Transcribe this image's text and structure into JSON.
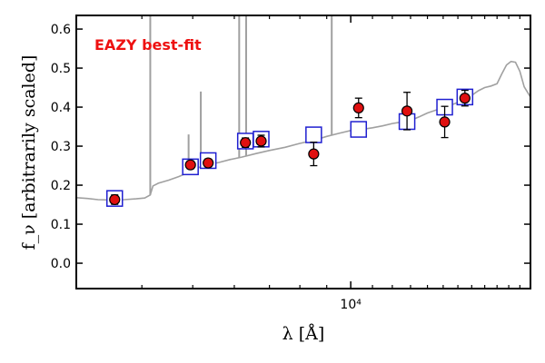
{
  "chart_data": {
    "type": "scatter",
    "xlabel": "λ [Å]",
    "ylabel": "f_ν [arbitrarily scaled]",
    "x_scale": "log",
    "xlim": [
      3000,
      22000
    ],
    "ylim": [
      -0.065,
      0.635
    ],
    "x_tick_labels": [
      {
        "value": 10000,
        "label": "10⁴"
      }
    ],
    "y_ticks": [
      0.0,
      0.1,
      0.2,
      0.3,
      0.4,
      0.5,
      0.6
    ],
    "y_tick_labels": [
      "0.0",
      "0.1",
      "0.2",
      "0.3",
      "0.4",
      "0.5",
      "0.6"
    ],
    "grid": false,
    "annotation": {
      "text": "EAZY best-fit",
      "color": "#ee1111"
    },
    "colors": {
      "template": "#a0a0a0",
      "model": "#1f1fd0",
      "observed": "#e01010"
    },
    "template_sed": [
      [
        3000,
        0.168
      ],
      [
        3150,
        0.166
      ],
      [
        3300,
        0.163
      ],
      [
        3500,
        0.162
      ],
      [
        3700,
        0.163
      ],
      [
        3900,
        0.165
      ],
      [
        4050,
        0.167
      ],
      [
        4150,
        0.175
      ],
      [
        4200,
        0.198
      ],
      [
        4300,
        0.205
      ],
      [
        4500,
        0.213
      ],
      [
        4700,
        0.222
      ],
      [
        4900,
        0.232
      ],
      [
        5100,
        0.244
      ],
      [
        5300,
        0.252
      ],
      [
        5600,
        0.258
      ],
      [
        5900,
        0.266
      ],
      [
        6200,
        0.272
      ],
      [
        6600,
        0.281
      ],
      [
        7000,
        0.289
      ],
      [
        7500,
        0.297
      ],
      [
        8000,
        0.307
      ],
      [
        8500,
        0.315
      ],
      [
        9000,
        0.325
      ],
      [
        9500,
        0.333
      ],
      [
        10000,
        0.34
      ],
      [
        10500,
        0.343
      ],
      [
        11000,
        0.347
      ],
      [
        11500,
        0.352
      ],
      [
        12000,
        0.358
      ],
      [
        12500,
        0.362
      ],
      [
        13000,
        0.366
      ],
      [
        13500,
        0.375
      ],
      [
        14000,
        0.385
      ],
      [
        14500,
        0.392
      ],
      [
        15000,
        0.398
      ],
      [
        15500,
        0.405
      ],
      [
        16000,
        0.412
      ],
      [
        16500,
        0.418
      ],
      [
        17000,
        0.43
      ],
      [
        17500,
        0.442
      ],
      [
        18000,
        0.45
      ],
      [
        18500,
        0.454
      ],
      [
        19000,
        0.46
      ],
      [
        19400,
        0.485
      ],
      [
        19800,
        0.508
      ],
      [
        20200,
        0.517
      ],
      [
        20600,
        0.515
      ],
      [
        21000,
        0.492
      ],
      [
        21400,
        0.452
      ],
      [
        22000,
        0.426
      ]
    ],
    "emission_lines": [
      {
        "x": 4150,
        "top": 0.635
      },
      {
        "x": 4910,
        "top": 0.33
      },
      {
        "x": 5180,
        "top": 0.44
      },
      {
        "x": 6130,
        "top": 0.635
      },
      {
        "x": 6320,
        "top": 0.635
      },
      {
        "x": 9200,
        "top": 0.635
      }
    ],
    "model_points": [
      {
        "x": 3550,
        "y": 0.166
      },
      {
        "x": 4950,
        "y": 0.247
      },
      {
        "x": 5350,
        "y": 0.263
      },
      {
        "x": 6300,
        "y": 0.313
      },
      {
        "x": 6750,
        "y": 0.318
      },
      {
        "x": 8500,
        "y": 0.329
      },
      {
        "x": 10350,
        "y": 0.343
      },
      {
        "x": 12800,
        "y": 0.363
      },
      {
        "x": 15100,
        "y": 0.4
      },
      {
        "x": 16500,
        "y": 0.426
      }
    ],
    "observed_points": [
      {
        "x": 3550,
        "y": 0.163,
        "err": 0.012
      },
      {
        "x": 4950,
        "y": 0.252,
        "err": 0.01
      },
      {
        "x": 5350,
        "y": 0.257,
        "err": 0.01
      },
      {
        "x": 6300,
        "y": 0.309,
        "err": 0.012
      },
      {
        "x": 6750,
        "y": 0.313,
        "err": 0.015
      },
      {
        "x": 8500,
        "y": 0.28,
        "err": 0.03
      },
      {
        "x": 10350,
        "y": 0.398,
        "err": 0.025
      },
      {
        "x": 12800,
        "y": 0.39,
        "err": 0.048
      },
      {
        "x": 15100,
        "y": 0.362,
        "err": 0.04
      },
      {
        "x": 16500,
        "y": 0.423,
        "err": 0.02
      }
    ]
  }
}
